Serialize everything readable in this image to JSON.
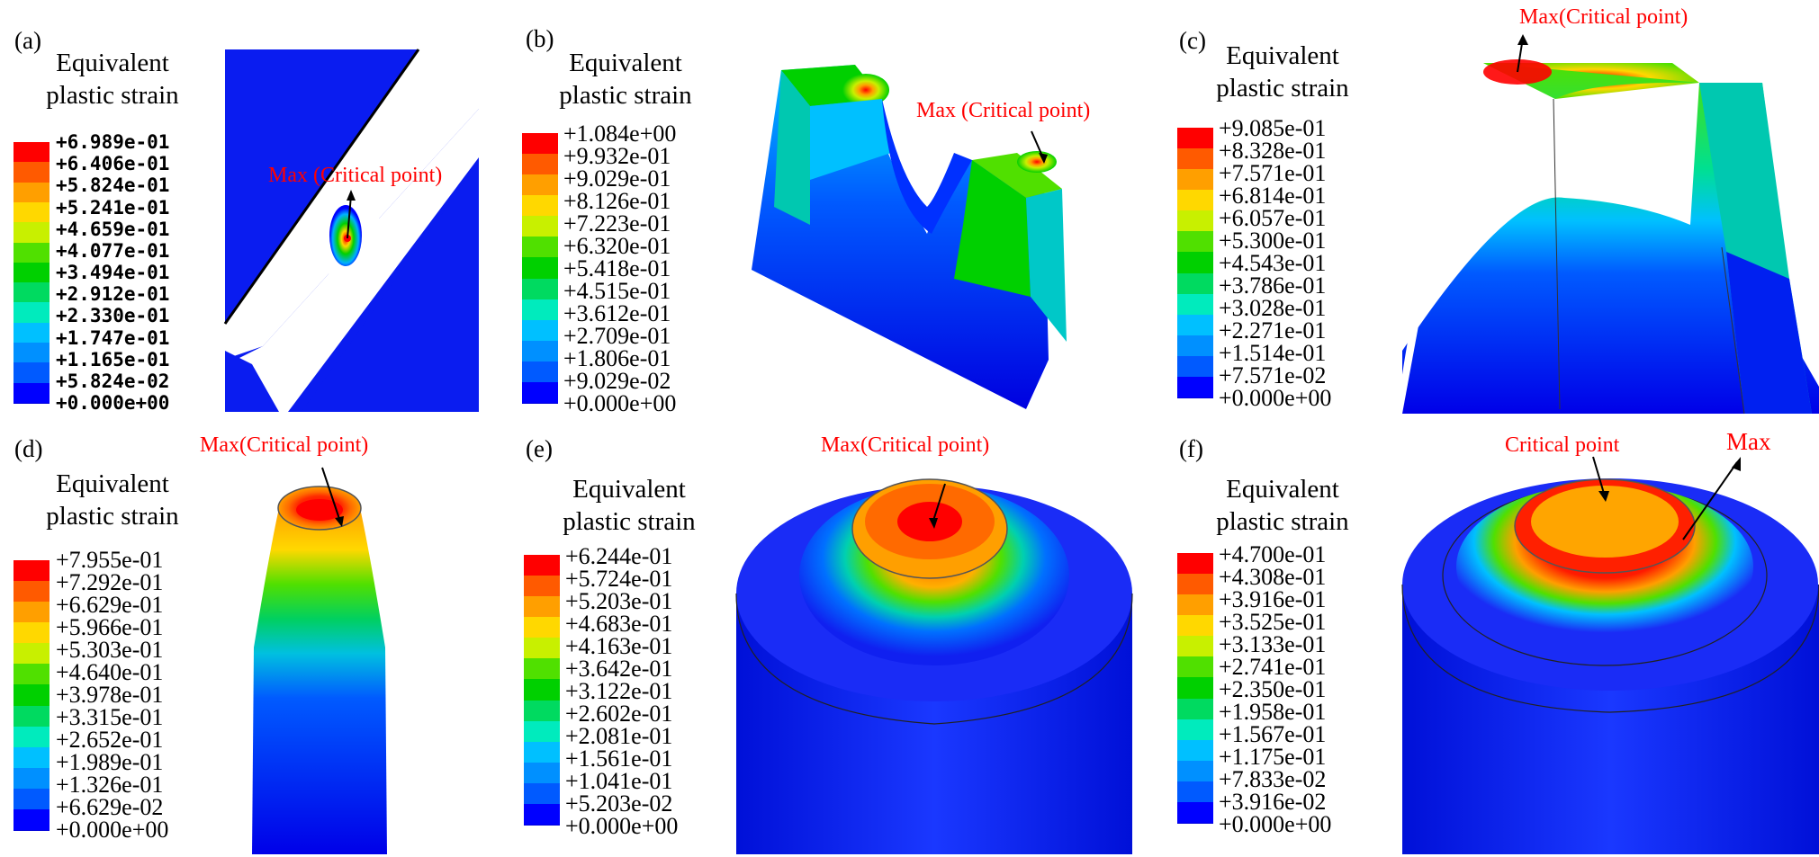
{
  "colors": [
    "#ff0000",
    "#ff5a00",
    "#ff9f00",
    "#ffd800",
    "#c8f000",
    "#50e000",
    "#00d000",
    "#00da60",
    "#00ebbd",
    "#00c0ff",
    "#0090ff",
    "#005aff",
    "#0000ff"
  ],
  "panels": [
    {
      "label": "(a)",
      "legend_title": [
        "Equivalent",
        "plastic strain"
      ],
      "values": [
        "+6.989e-01",
        "+6.406e-01",
        "+5.824e-01",
        "+5.241e-01",
        "+4.659e-01",
        "+4.077e-01",
        "+3.494e-01",
        "+2.912e-01",
        "+2.330e-01",
        "+1.747e-01",
        "+1.165e-01",
        "+5.824e-02",
        "+0.000e+00"
      ],
      "annotations": [
        "Max (Critical point)"
      ]
    },
    {
      "label": "(b)",
      "legend_title": [
        "Equivalent",
        "plastic strain"
      ],
      "values": [
        "+1.084e+00",
        "+9.932e-01",
        "+9.029e-01",
        "+8.126e-01",
        "+7.223e-01",
        "+6.320e-01",
        "+5.418e-01",
        "+4.515e-01",
        "+3.612e-01",
        "+2.709e-01",
        "+1.806e-01",
        "+9.029e-02",
        "+0.000e+00"
      ],
      "annotations": [
        "Max (Critical point)"
      ]
    },
    {
      "label": "(c)",
      "legend_title": [
        "Equivalent",
        "plastic strain"
      ],
      "values": [
        "+9.085e-01",
        "+8.328e-01",
        "+7.571e-01",
        "+6.814e-01",
        "+6.057e-01",
        "+5.300e-01",
        "+4.543e-01",
        "+3.786e-01",
        "+3.028e-01",
        "+2.271e-01",
        "+1.514e-01",
        "+7.571e-02",
        "+0.000e+00"
      ],
      "annotations": [
        "Max(Critical point)"
      ]
    },
    {
      "label": "(d)",
      "legend_title": [
        "Equivalent",
        "plastic strain"
      ],
      "values": [
        "+7.955e-01",
        "+7.292e-01",
        "+6.629e-01",
        "+5.966e-01",
        "+5.303e-01",
        "+4.640e-01",
        "+3.978e-01",
        "+3.315e-01",
        "+2.652e-01",
        "+1.989e-01",
        "+1.326e-01",
        "+6.629e-02",
        "+0.000e+00"
      ],
      "annotations": [
        "Max(Critical point)"
      ]
    },
    {
      "label": "(e)",
      "legend_title": [
        "Equivalent",
        "plastic strain"
      ],
      "values": [
        "+6.244e-01",
        "+5.724e-01",
        "+5.203e-01",
        "+4.683e-01",
        "+4.163e-01",
        "+3.642e-01",
        "+3.122e-01",
        "+2.602e-01",
        "+2.081e-01",
        "+1.561e-01",
        "+1.041e-01",
        "+5.203e-02",
        "+0.000e+00"
      ],
      "annotations": [
        "Max(Critical point)"
      ]
    },
    {
      "label": "(f)",
      "legend_title": [
        "Equivalent",
        "plastic strain"
      ],
      "values": [
        "+4.700e-01",
        "+4.308e-01",
        "+3.916e-01",
        "+3.525e-01",
        "+3.133e-01",
        "+2.741e-01",
        "+2.350e-01",
        "+1.958e-01",
        "+1.567e-01",
        "+1.175e-01",
        "+7.833e-02",
        "+3.916e-02",
        "+0.000e+00"
      ],
      "annotations": [
        "Critical point",
        "Max"
      ]
    }
  ]
}
